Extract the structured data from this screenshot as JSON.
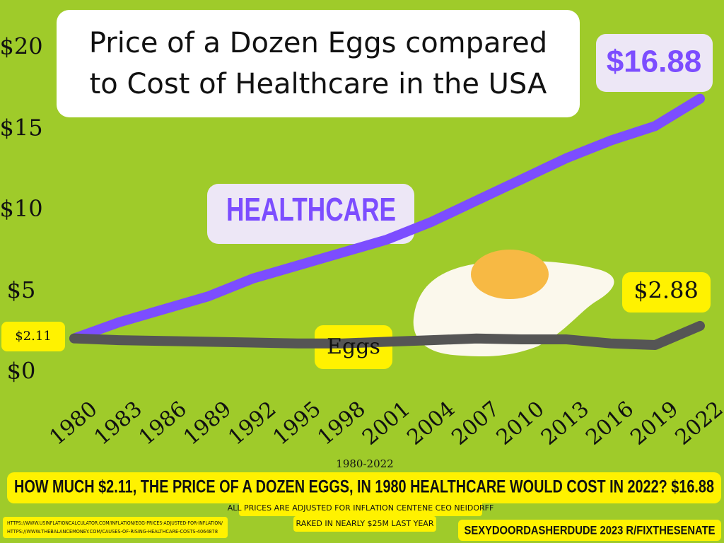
{
  "chart_data": {
    "type": "line",
    "title": "Price of a Dozen Eggs compared to Cost of Healthcare in the USA",
    "x": [
      1980,
      1983,
      1986,
      1989,
      1992,
      1995,
      1998,
      2001,
      2004,
      2007,
      2010,
      2013,
      2016,
      2019,
      2022
    ],
    "xlim": [
      1980,
      2022
    ],
    "xticks": [
      1980,
      1983,
      1986,
      1989,
      1992,
      1995,
      1998,
      2001,
      2004,
      2007,
      2010,
      2013,
      2016,
      2019,
      2022
    ],
    "ylim": [
      0,
      20
    ],
    "yticks": [
      {
        "value": 0,
        "label": "$0"
      },
      {
        "value": 5,
        "label": "$5"
      },
      {
        "value": 10,
        "label": "$10"
      },
      {
        "value": 15,
        "label": "$15"
      },
      {
        "value": 20,
        "label": "$20"
      }
    ],
    "series": [
      {
        "name": "HEALTHCARE",
        "color": "#7c4dff",
        "values": [
          2.11,
          3.1,
          3.9,
          4.7,
          5.8,
          6.6,
          7.4,
          8.2,
          9.3,
          10.6,
          11.9,
          13.2,
          14.3,
          15.2,
          16.88
        ],
        "value_labels": [
          "$2.11",
          null,
          null,
          null,
          null,
          null,
          null,
          null,
          null,
          null,
          null,
          null,
          null,
          null,
          "$16.88"
        ]
      },
      {
        "name": "Eggs",
        "color": "#555555",
        "values": [
          2.11,
          2.0,
          1.95,
          1.9,
          1.85,
          1.8,
          1.8,
          1.9,
          2.0,
          2.1,
          2.05,
          2.05,
          1.8,
          1.7,
          2.88
        ],
        "value_labels": [
          null,
          null,
          null,
          null,
          null,
          null,
          null,
          null,
          null,
          null,
          null,
          null,
          null,
          null,
          "$2.88"
        ]
      }
    ],
    "x_label": "1980-2022",
    "headline": "HOW MUCH $2.11, THE PRICE OF A DOZEN EGGS, IN 1980 HEALTHCARE WOULD COST IN 2022? $16.88",
    "notes": [
      "ALL PRICES ARE ADJUSTED FOR INFLATION CENTENE CEO NEIDORFF",
      "RAKED IN NEARLY $25M LAST YEAR"
    ],
    "sources": [
      "HTTPS://WWW.USINFLATIONCALCULATOR.COM/INFLATION/EGG-PRICES-ADJUSTED-FOR-INFLATION/",
      "HTTPS://WWW.THEBALANCEMONEY.COM/CAUSES-OF-RISING-HEALTHCARE-COSTS-4064878"
    ],
    "credit": "SEXYDOORDASHERDUDE 2023 R/FIXTHESENATE"
  }
}
